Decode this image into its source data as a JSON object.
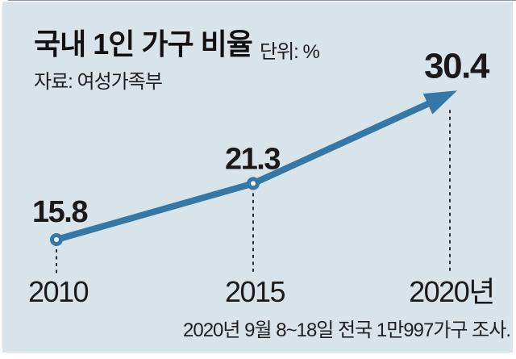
{
  "colors": {
    "panel_background": "#d8e3ea",
    "line_accent": "#3577a6",
    "dashed_connector": "#2d2d2d",
    "text": "#1a1a1a",
    "top_hairline": "#8e979c"
  },
  "header": {
    "title": "국내 1인 가구 비율",
    "unit_label": "단위: %",
    "source_label": "자료: 여성가족부"
  },
  "footer": {
    "caption": "2020년 9월 8~18일 전국 1만997가구 조사."
  },
  "chart_data": {
    "type": "line",
    "title": "국내 1인 가구 비율",
    "unit": "%",
    "source": "여성가족부",
    "x": [
      2010,
      2015,
      2020
    ],
    "categories": [
      "2010",
      "2015",
      "2020년"
    ],
    "values": [
      15.8,
      21.3,
      30.4
    ],
    "value_labels": [
      "15.8",
      "21.3",
      "30.4"
    ],
    "series": [
      {
        "name": "1인 가구 비율",
        "values": [
          15.8,
          21.3,
          30.4
        ]
      }
    ],
    "marker": "open-circle",
    "end_arrow": true,
    "grid": false,
    "legend": "none",
    "ylim": [
      15.8,
      30.4
    ]
  }
}
